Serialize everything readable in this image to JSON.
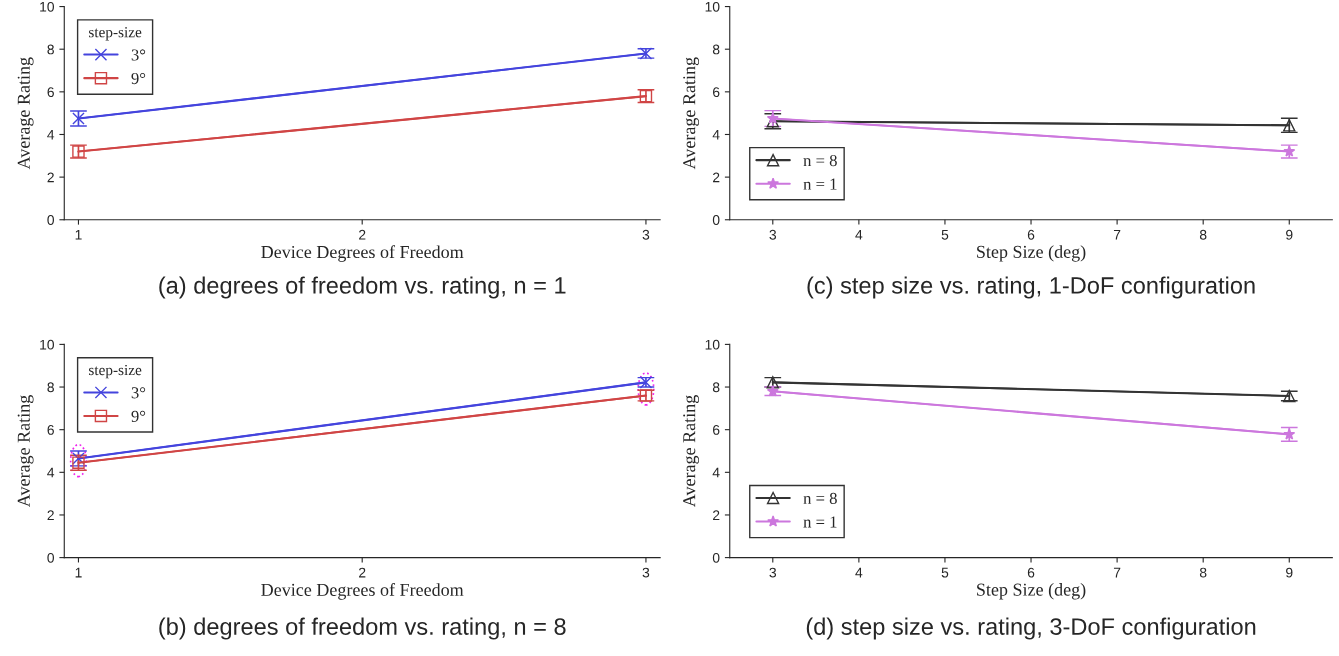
{
  "chart_data": [
    {
      "type": "line",
      "xlabel": "Device Degrees of Freedom",
      "ylabel": "Average Rating",
      "legend_title": "step-size",
      "x": [
        1,
        3
      ],
      "xlim": [
        0.95,
        3.05
      ],
      "xticks": [
        1,
        2,
        3
      ],
      "ylim": [
        0,
        10
      ],
      "yticks": [
        0,
        2,
        4,
        6,
        8,
        10
      ],
      "legend": "top left",
      "grid": false,
      "series": [
        {
          "name": "3°",
          "color": "#4444dd",
          "marker": "cross",
          "values": [
            4.75,
            7.8
          ],
          "errors": [
            0.35,
            0.22
          ]
        },
        {
          "name": "9°",
          "color": "#d04545",
          "marker": "square",
          "values": [
            3.2,
            5.8
          ],
          "errors": [
            0.3,
            0.3
          ]
        }
      ],
      "annotations": [
        "(a) degrees of freedom vs. rating, n = 1"
      ]
    },
    {
      "type": "line",
      "xlabel": "Step Size (deg)",
      "ylabel": "Average Rating",
      "x": [
        3,
        9
      ],
      "xlim": [
        2.5,
        9.5
      ],
      "xticks": [
        3,
        4,
        5,
        6,
        7,
        8,
        9
      ],
      "ylim": [
        0,
        10
      ],
      "yticks": [
        0,
        2,
        4,
        6,
        8,
        10
      ],
      "legend": "bottom left",
      "grid": false,
      "series": [
        {
          "name": "n = 8",
          "color": "#333333",
          "marker": "triangle",
          "values": [
            4.62,
            4.43
          ],
          "errors": [
            0.35,
            0.33
          ]
        },
        {
          "name": "n = 1",
          "color": "#cc77dd",
          "marker": "star",
          "values": [
            4.75,
            3.2
          ],
          "errors": [
            0.37,
            0.3
          ]
        }
      ],
      "annotations": [
        "(c) step size vs. rating, 1-DoF configuration"
      ]
    },
    {
      "type": "line",
      "xlabel": "Device Degrees of Freedom",
      "ylabel": "Average Rating",
      "legend_title": "step-size",
      "x": [
        1,
        3
      ],
      "xlim": [
        0.95,
        3.05
      ],
      "xticks": [
        1,
        2,
        3
      ],
      "ylim": [
        0,
        10
      ],
      "yticks": [
        0,
        2,
        4,
        6,
        8,
        10
      ],
      "legend": "top left",
      "grid": false,
      "series": [
        {
          "name": "3°",
          "color": "#4444dd",
          "marker": "cross",
          "values": [
            4.65,
            8.22
          ],
          "errors": [
            0.35,
            0.22
          ]
        },
        {
          "name": "9°",
          "color": "#d04545",
          "marker": "square",
          "values": [
            4.45,
            7.6
          ],
          "errors": [
            0.35,
            0.25
          ]
        }
      ],
      "annotations": [
        "(b) degrees of freedom vs. rating, n = 8"
      ]
    },
    {
      "type": "line",
      "xlabel": "Step Size (deg)",
      "ylabel": "Average Rating",
      "x": [
        3,
        9
      ],
      "xlim": [
        2.5,
        9.5
      ],
      "xticks": [
        3,
        4,
        5,
        6,
        7,
        8,
        9
      ],
      "ylim": [
        0,
        10
      ],
      "yticks": [
        0,
        2,
        4,
        6,
        8,
        10
      ],
      "legend": "bottom left",
      "grid": false,
      "series": [
        {
          "name": "n = 8",
          "color": "#333333",
          "marker": "triangle",
          "values": [
            8.22,
            7.58
          ],
          "errors": [
            0.22,
            0.22
          ]
        },
        {
          "name": "n = 1",
          "color": "#cc77dd",
          "marker": "star",
          "values": [
            7.8,
            5.78
          ],
          "errors": [
            0.2,
            0.32
          ]
        }
      ],
      "annotations": [
        "(d) step size vs. rating, 3-DoF configuration"
      ]
    }
  ]
}
